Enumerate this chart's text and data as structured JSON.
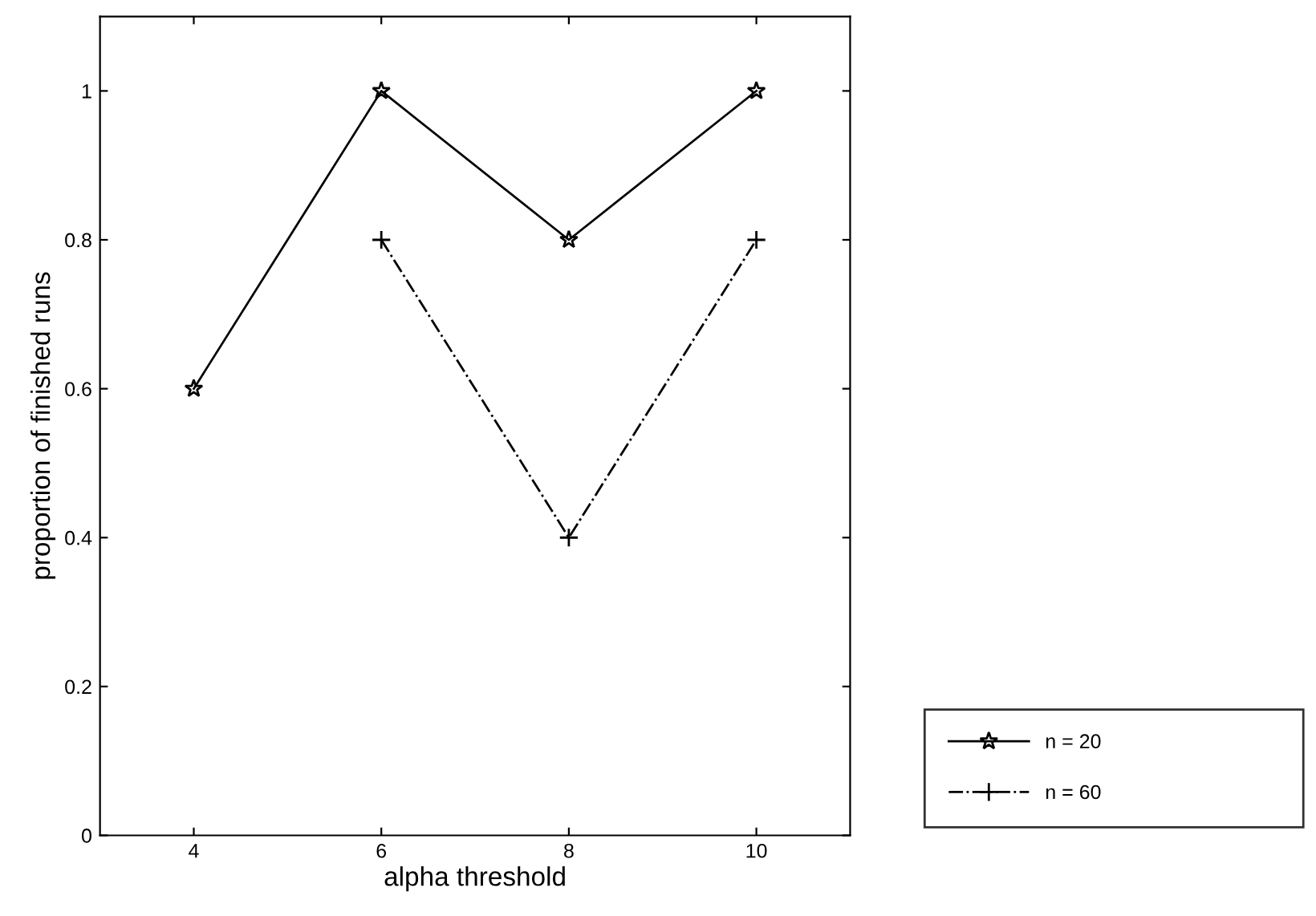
{
  "chart_data": {
    "type": "line",
    "xlabel": "alpha threshold",
    "ylabel": "proportion of finished runs",
    "xlim": [
      3,
      11
    ],
    "xticks": [
      4,
      6,
      8,
      10
    ],
    "ylim": [
      0,
      1.1
    ],
    "yticks": [
      0,
      0.2,
      0.4,
      0.6,
      0.8,
      1
    ],
    "grid": false,
    "legend": "bottom right",
    "series": [
      {
        "name": "n = 20",
        "color": "#000000",
        "x": [
          4,
          6,
          8,
          10
        ],
        "values": [
          0.6,
          1,
          0.8,
          1
        ],
        "marker": "star",
        "line_style": "solid"
      },
      {
        "name": "n = 60",
        "color": "#000000",
        "x": [
          6,
          8,
          10
        ],
        "values": [
          0.8,
          0.4,
          0.8
        ],
        "marker": "cross",
        "line_style": "dashdot"
      }
    ]
  }
}
